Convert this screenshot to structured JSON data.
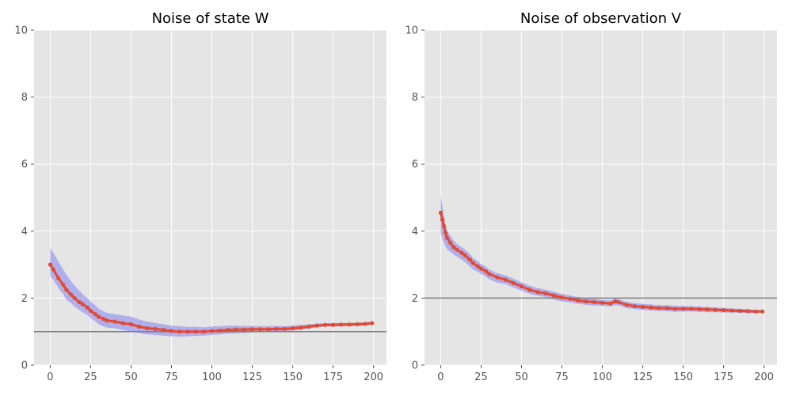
{
  "colors": {
    "panel_bg": "#E5E5E5",
    "grid": "#FFFFFF",
    "line": "#E24A33",
    "band": "#8A8AF0",
    "reference": "#808080",
    "tick_text": "#555555"
  },
  "chart_data": [
    {
      "type": "line",
      "title": "Noise of state W",
      "xlabel": "",
      "ylabel": "",
      "xlim": [
        -10,
        208
      ],
      "ylim": [
        0,
        10
      ],
      "xticks": [
        0,
        25,
        50,
        75,
        100,
        125,
        150,
        175,
        200
      ],
      "yticks": [
        0,
        2,
        4,
        6,
        8,
        10
      ],
      "grid": true,
      "reference_line": 1.0,
      "band_halfwidth": 0.12,
      "series": [
        {
          "x": [
            0,
            2,
            5,
            8,
            10,
            13,
            15,
            18,
            20,
            23,
            25,
            28,
            30,
            33,
            35,
            40,
            45,
            50,
            55,
            60,
            65,
            70,
            75,
            80,
            85,
            90,
            95,
            100,
            105,
            110,
            115,
            120,
            125,
            130,
            135,
            140,
            145,
            150,
            155,
            160,
            165,
            170,
            175,
            180,
            185,
            190,
            195,
            199
          ],
          "y": [
            3.0,
            2.85,
            2.6,
            2.4,
            2.25,
            2.1,
            2.0,
            1.88,
            1.82,
            1.72,
            1.62,
            1.52,
            1.44,
            1.38,
            1.33,
            1.3,
            1.25,
            1.22,
            1.15,
            1.1,
            1.08,
            1.05,
            1.02,
            1.0,
            1.0,
            1.0,
            1.0,
            1.02,
            1.03,
            1.05,
            1.06,
            1.06,
            1.07,
            1.07,
            1.07,
            1.08,
            1.08,
            1.1,
            1.12,
            1.15,
            1.18,
            1.2,
            1.2,
            1.21,
            1.21,
            1.22,
            1.23,
            1.25
          ]
        }
      ],
      "band_upper": [
        3.5,
        3.35,
        3.1,
        2.85,
        2.7,
        2.5,
        2.38,
        2.22,
        2.12,
        2.0,
        1.9,
        1.78,
        1.68,
        1.6,
        1.56,
        1.52,
        1.48,
        1.45,
        1.36,
        1.3,
        1.26,
        1.22,
        1.18,
        1.16,
        1.14,
        1.14,
        1.13,
        1.15,
        1.16,
        1.18,
        1.18,
        1.17,
        1.17,
        1.16,
        1.16,
        1.17,
        1.16,
        1.18,
        1.2,
        1.22,
        1.24,
        1.25,
        1.26,
        1.26,
        1.26,
        1.27,
        1.28,
        1.29
      ],
      "band_lower": [
        2.65,
        2.55,
        2.3,
        2.12,
        1.95,
        1.85,
        1.75,
        1.65,
        1.58,
        1.5,
        1.4,
        1.3,
        1.22,
        1.15,
        1.12,
        1.1,
        1.05,
        1.0,
        0.95,
        0.92,
        0.9,
        0.88,
        0.86,
        0.85,
        0.86,
        0.87,
        0.88,
        0.9,
        0.92,
        0.94,
        0.95,
        0.96,
        0.98,
        0.99,
        1.0,
        1.0,
        1.01,
        1.03,
        1.05,
        1.09,
        1.12,
        1.15,
        1.15,
        1.16,
        1.16,
        1.17,
        1.18,
        1.21
      ]
    },
    {
      "type": "line",
      "title": "Noise of observation V",
      "xlabel": "",
      "ylabel": "",
      "xlim": [
        -10,
        208
      ],
      "ylim": [
        0,
        10
      ],
      "xticks": [
        0,
        25,
        50,
        75,
        100,
        125,
        150,
        175,
        200
      ],
      "yticks": [
        0,
        2,
        4,
        6,
        8,
        10
      ],
      "grid": true,
      "reference_line": 2.0,
      "series": [
        {
          "x": [
            0,
            1,
            2,
            3,
            4,
            6,
            8,
            10,
            13,
            15,
            18,
            20,
            23,
            25,
            28,
            30,
            35,
            40,
            45,
            50,
            55,
            60,
            65,
            70,
            75,
            80,
            85,
            90,
            95,
            100,
            105,
            108,
            110,
            115,
            120,
            125,
            130,
            135,
            140,
            145,
            150,
            155,
            160,
            165,
            170,
            175,
            180,
            185,
            190,
            195,
            199
          ],
          "y": [
            4.55,
            4.35,
            4.15,
            3.95,
            3.8,
            3.65,
            3.52,
            3.45,
            3.35,
            3.28,
            3.15,
            3.05,
            2.95,
            2.88,
            2.8,
            2.72,
            2.62,
            2.55,
            2.45,
            2.35,
            2.25,
            2.18,
            2.14,
            2.08,
            2.02,
            1.98,
            1.93,
            1.9,
            1.88,
            1.86,
            1.84,
            1.9,
            1.88,
            1.8,
            1.76,
            1.74,
            1.72,
            1.7,
            1.7,
            1.68,
            1.68,
            1.68,
            1.67,
            1.66,
            1.65,
            1.64,
            1.63,
            1.62,
            1.61,
            1.6,
            1.6
          ]
        }
      ],
      "band_upper": [
        5.05,
        4.75,
        4.45,
        4.2,
        4.02,
        3.85,
        3.72,
        3.62,
        3.52,
        3.45,
        3.32,
        3.2,
        3.1,
        3.02,
        2.94,
        2.85,
        2.75,
        2.68,
        2.58,
        2.47,
        2.37,
        2.3,
        2.25,
        2.19,
        2.12,
        2.08,
        2.03,
        2.0,
        1.98,
        1.95,
        1.93,
        1.99,
        1.97,
        1.89,
        1.85,
        1.83,
        1.81,
        1.79,
        1.79,
        1.77,
        1.77,
        1.76,
        1.75,
        1.74,
        1.72,
        1.71,
        1.69,
        1.68,
        1.67,
        1.65,
        1.64
      ],
      "band_lower": [
        3.95,
        3.78,
        3.65,
        3.55,
        3.45,
        3.38,
        3.3,
        3.24,
        3.15,
        3.08,
        2.95,
        2.85,
        2.78,
        2.72,
        2.64,
        2.56,
        2.46,
        2.42,
        2.32,
        2.22,
        2.13,
        2.07,
        2.03,
        1.96,
        1.9,
        1.87,
        1.83,
        1.8,
        1.78,
        1.77,
        1.75,
        1.8,
        1.78,
        1.7,
        1.67,
        1.65,
        1.63,
        1.62,
        1.61,
        1.59,
        1.6,
        1.6,
        1.59,
        1.58,
        1.58,
        1.57,
        1.57,
        1.56,
        1.55,
        1.55,
        1.56
      ]
    }
  ]
}
